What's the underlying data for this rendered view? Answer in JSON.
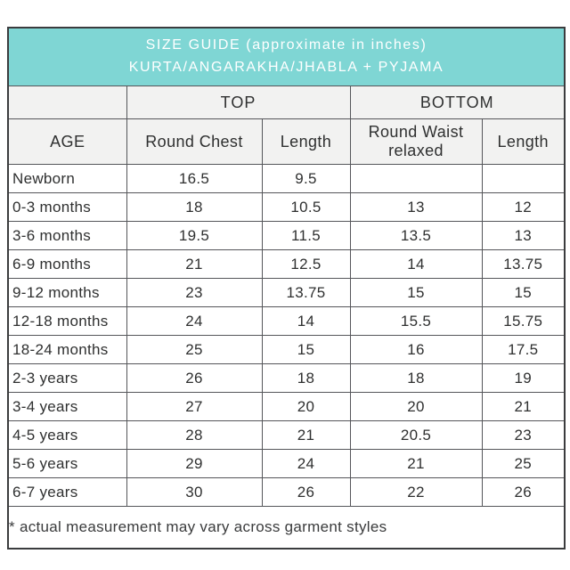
{
  "title": {
    "line1": "SIZE GUIDE (approximate in inches)",
    "line2": "KURTA/ANGARAKHA/JHABLA + PYJAMA"
  },
  "colors": {
    "banner_bg": "#7fd6d4",
    "banner_text": "#ffffff",
    "subheader_bg": "#f2f2f1",
    "border": "#55565a",
    "text": "#2f3030"
  },
  "table": {
    "group_headers": {
      "top": "TOP",
      "bottom": "BOTTOM"
    },
    "columns": [
      "AGE",
      "Round Chest",
      "Length",
      "Round Waist relaxed",
      "Length"
    ],
    "rows": [
      {
        "age": "Newborn",
        "values": [
          "16.5",
          "9.5",
          "",
          ""
        ]
      },
      {
        "age": "0-3 months",
        "values": [
          "18",
          "10.5",
          "13",
          "12"
        ]
      },
      {
        "age": "3-6 months",
        "values": [
          "19.5",
          "11.5",
          "13.5",
          "13"
        ]
      },
      {
        "age": "6-9 months",
        "values": [
          "21",
          "12.5",
          "14",
          "13.75"
        ]
      },
      {
        "age": "9-12 months",
        "values": [
          "23",
          "13.75",
          "15",
          "15"
        ]
      },
      {
        "age": "12-18 months",
        "values": [
          "24",
          "14",
          "15.5",
          "15.75"
        ]
      },
      {
        "age": "18-24 months",
        "values": [
          "25",
          "15",
          "16",
          "17.5"
        ]
      },
      {
        "age": "2-3 years",
        "values": [
          "26",
          "18",
          "18",
          "19"
        ]
      },
      {
        "age": "3-4 years",
        "values": [
          "27",
          "20",
          "20",
          "21"
        ]
      },
      {
        "age": "4-5 years",
        "values": [
          "28",
          "21",
          "20.5",
          "23"
        ]
      },
      {
        "age": "5-6 years",
        "values": [
          "29",
          "24",
          "21",
          "25"
        ]
      },
      {
        "age": "6-7 years",
        "values": [
          "30",
          "26",
          "22",
          "26"
        ]
      }
    ]
  },
  "footnote": "* actual measurement may vary across garment styles"
}
